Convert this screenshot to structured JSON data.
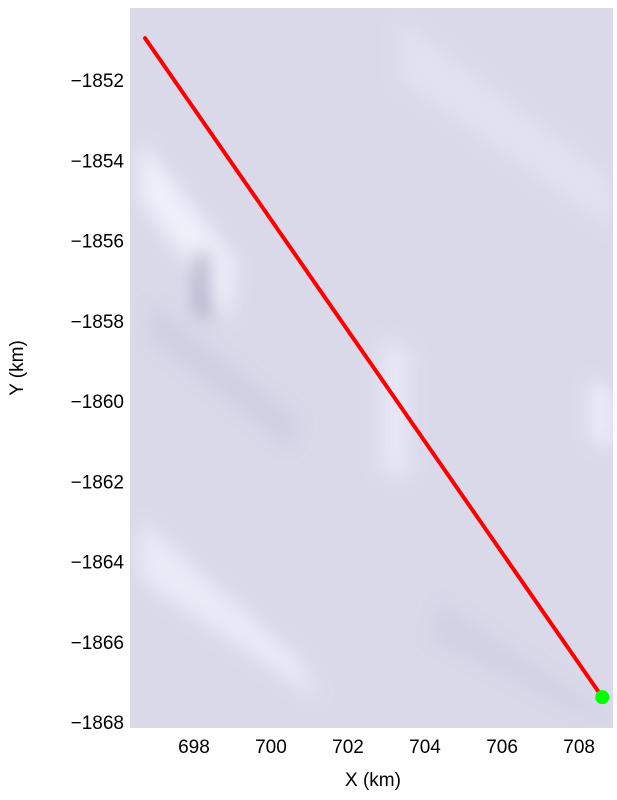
{
  "chart_data": {
    "type": "line",
    "xlabel": "X (km)",
    "ylabel": "Y (km)",
    "x": [
      696.73,
      708.6
    ],
    "values": [
      -1850.9,
      -1867.33
    ],
    "color": "#ff0000",
    "points": {
      "x": [
        708.6
      ],
      "values": [
        -1867.33
      ],
      "color": "#00ff00"
    },
    "xlim": [
      696.34,
      708.88
    ],
    "ylim": [
      -1868.1,
      -1850.15
    ],
    "xticks": [
      698,
      700,
      702,
      704,
      706,
      708
    ],
    "yticks": [
      {
        "value": -1852,
        "label": "−1852"
      },
      {
        "value": -1854,
        "label": "−1854"
      },
      {
        "value": -1856,
        "label": "−1856"
      },
      {
        "value": -1858,
        "label": "−1858"
      },
      {
        "value": -1860,
        "label": "−1860"
      },
      {
        "value": -1862,
        "label": "−1862"
      },
      {
        "value": -1864,
        "label": "−1864"
      },
      {
        "value": -1866,
        "label": "−1866"
      },
      {
        "value": -1868,
        "label": "−1868"
      }
    ],
    "grid": false
  }
}
